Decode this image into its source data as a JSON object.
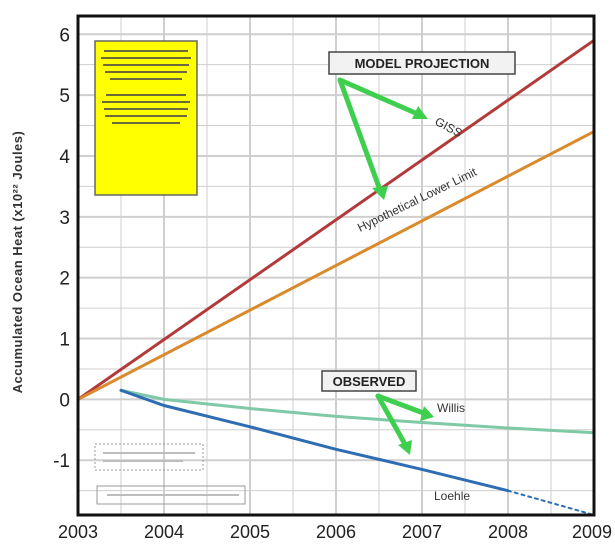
{
  "chart_data": {
    "type": "line",
    "title": "",
    "xlabel": "",
    "ylabel": "Accumulated Ocean Heat (x10²² Joules)",
    "xlim": [
      2003,
      2009
    ],
    "ylim": [
      -1.9,
      6.3
    ],
    "x_ticks": [
      "2003",
      "2004",
      "2005",
      "2006",
      "2007",
      "2008",
      "2009"
    ],
    "y_ticks": [
      "-1",
      "0",
      "1",
      "2",
      "3",
      "4",
      "5",
      "6"
    ],
    "grid": true,
    "series": [
      {
        "name": "GISS",
        "group": "model-projection",
        "color": "#b23a3a",
        "x": [
          2003,
          2009
        ],
        "y": [
          0.0,
          5.9
        ]
      },
      {
        "name": "Hypothetical Lower Limit",
        "group": "model-projection",
        "color": "#d98a2b",
        "x": [
          2003,
          2009
        ],
        "y": [
          0.0,
          4.4
        ]
      },
      {
        "name": "Willis",
        "group": "observed",
        "color": "#7fc9a6",
        "x": [
          2003.5,
          2004,
          2005,
          2006,
          2007,
          2008,
          2009
        ],
        "y": [
          0.15,
          0.0,
          -0.15,
          -0.28,
          -0.38,
          -0.47,
          -0.55
        ]
      },
      {
        "name": "Loehle",
        "group": "observed",
        "color": "#2f6db3",
        "x": [
          2003.5,
          2004,
          2005,
          2006,
          2007,
          2008
        ],
        "y": [
          0.15,
          -0.1,
          -0.45,
          -0.82,
          -1.15,
          -1.5
        ]
      },
      {
        "name": "Loehle (dotted)",
        "group": "observed",
        "color": "#2f6db3",
        "dashed": true,
        "x": [
          2008,
          2008.5,
          2009
        ],
        "y": [
          -1.5,
          -1.7,
          -1.9
        ]
      }
    ],
    "annotations": {
      "model_projection": "MODEL PROJECTION",
      "observed": "OBSERVED",
      "giss_label": "GISS",
      "lower_limit_label": "Hypothetical Lower Limit",
      "willis_label": "Willis",
      "loehle_label": "Loehle"
    },
    "colors": {
      "note_box": "#ffff00",
      "arrow": "#3fcf4f",
      "grid": "#cfcfcf",
      "background": "#ffffff"
    }
  }
}
